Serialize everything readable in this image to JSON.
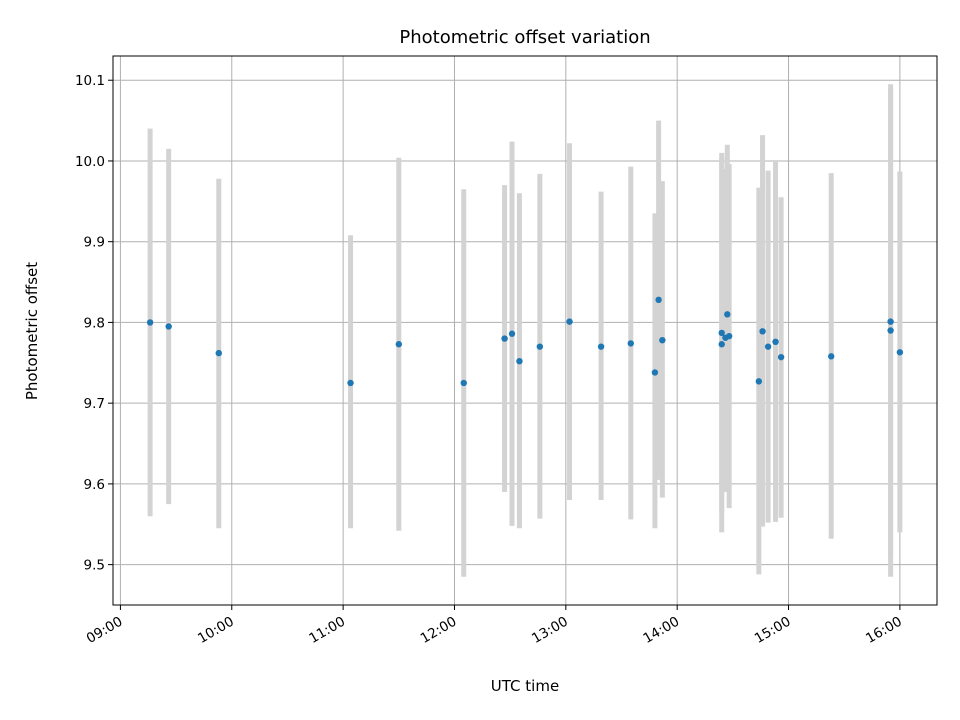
{
  "chart_data": {
    "type": "scatter",
    "title": "Photometric offset variation",
    "xlabel": "UTC time",
    "ylabel": "Photometric offset",
    "x_ticks": [
      "09:00",
      "10:00",
      "11:00",
      "12:00",
      "13:00",
      "14:00",
      "15:00",
      "16:00"
    ],
    "y_ticks": [
      "9.5",
      "9.6",
      "9.7",
      "9.8",
      "9.9",
      "10.0",
      "10.1"
    ],
    "xlim": [
      "08:56",
      "16:20"
    ],
    "ylim": [
      9.45,
      10.13
    ],
    "grid": true,
    "point_color": "#1f77b4",
    "errorbar_color": "#d3d3d3",
    "points": [
      {
        "t": "09:16",
        "y": 9.8,
        "lo": 9.56,
        "hi": 10.04
      },
      {
        "t": "09:26",
        "y": 9.795,
        "lo": 9.575,
        "hi": 10.015
      },
      {
        "t": "09:53",
        "y": 9.762,
        "lo": 9.545,
        "hi": 9.978
      },
      {
        "t": "11:04",
        "y": 9.725,
        "lo": 9.545,
        "hi": 9.908
      },
      {
        "t": "11:30",
        "y": 9.773,
        "lo": 9.542,
        "hi": 10.004
      },
      {
        "t": "12:05",
        "y": 9.725,
        "lo": 9.485,
        "hi": 9.965
      },
      {
        "t": "12:27",
        "y": 9.78,
        "lo": 9.59,
        "hi": 9.97
      },
      {
        "t": "12:31",
        "y": 9.786,
        "lo": 9.548,
        "hi": 10.024
      },
      {
        "t": "12:35",
        "y": 9.752,
        "lo": 9.545,
        "hi": 9.96
      },
      {
        "t": "12:46",
        "y": 9.77,
        "lo": 9.557,
        "hi": 9.984
      },
      {
        "t": "13:02",
        "y": 9.801,
        "lo": 9.58,
        "hi": 10.022
      },
      {
        "t": "13:19",
        "y": 9.77,
        "lo": 9.58,
        "hi": 9.962
      },
      {
        "t": "13:35",
        "y": 9.774,
        "lo": 9.556,
        "hi": 9.993
      },
      {
        "t": "13:48",
        "y": 9.738,
        "lo": 9.545,
        "hi": 9.935
      },
      {
        "t": "13:50",
        "y": 9.828,
        "lo": 9.605,
        "hi": 10.05
      },
      {
        "t": "13:52",
        "y": 9.778,
        "lo": 9.583,
        "hi": 9.975
      },
      {
        "t": "14:24",
        "y": 9.787,
        "lo": 9.54,
        "hi": 10.01
      },
      {
        "t": "14:24",
        "y": 9.773,
        "lo": 9.565,
        "hi": 10.005
      },
      {
        "t": "14:26",
        "y": 9.781,
        "lo": 9.59,
        "hi": 9.99
      },
      {
        "t": "14:27",
        "y": 9.81,
        "lo": 9.6,
        "hi": 10.02
      },
      {
        "t": "14:28",
        "y": 9.783,
        "lo": 9.57,
        "hi": 9.996
      },
      {
        "t": "14:44",
        "y": 9.727,
        "lo": 9.488,
        "hi": 9.967
      },
      {
        "t": "14:46",
        "y": 9.789,
        "lo": 9.547,
        "hi": 10.032
      },
      {
        "t": "14:49",
        "y": 9.77,
        "lo": 9.552,
        "hi": 9.988
      },
      {
        "t": "14:53",
        "y": 9.776,
        "lo": 9.553,
        "hi": 10.0
      },
      {
        "t": "14:56",
        "y": 9.757,
        "lo": 9.558,
        "hi": 9.955
      },
      {
        "t": "15:23",
        "y": 9.758,
        "lo": 9.532,
        "hi": 9.985
      },
      {
        "t": "15:55",
        "y": 9.801,
        "lo": 9.508,
        "hi": 10.095
      },
      {
        "t": "15:55",
        "y": 9.79,
        "lo": 9.485,
        "hi": 10.09
      },
      {
        "t": "16:00",
        "y": 9.763,
        "lo": 9.54,
        "hi": 9.987
      }
    ]
  }
}
